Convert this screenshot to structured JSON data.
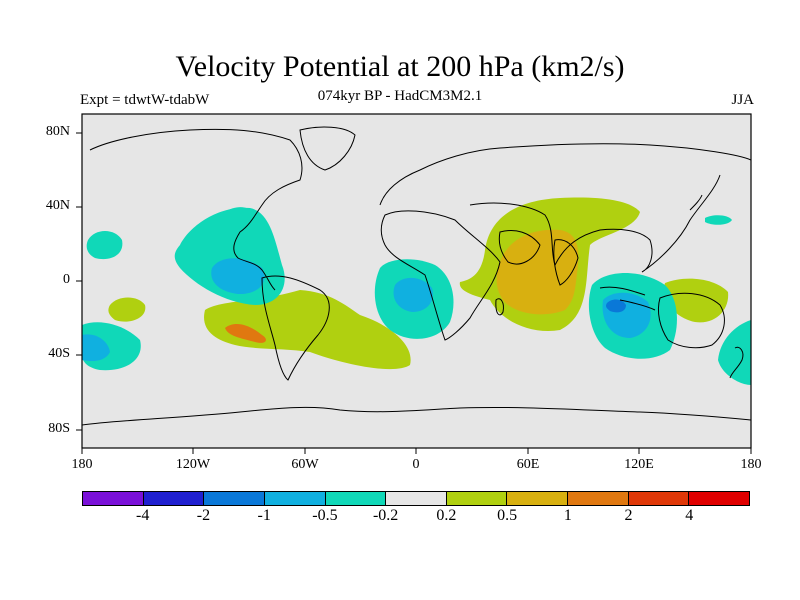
{
  "header": {
    "title": "Velocity Potential at 200 hPa (km2/s)",
    "subtitle": "074kyr BP - HadCM3M2.1",
    "expt": "Expt = tdwtW-tdabW",
    "season": "JJA"
  },
  "map": {
    "lat_labels": [
      "80N",
      "40N",
      "0",
      "40S",
      "80S"
    ],
    "lon_labels": [
      "180",
      "120W",
      "60W",
      "0",
      "60E",
      "120E",
      "180"
    ],
    "ocean_color": "#e6e6e6"
  },
  "colorbar": {
    "colors": [
      "#7a10d8",
      "#2020d0",
      "#0a78d8",
      "#10b0e0",
      "#10d8b8",
      "#e6e6e6",
      "#b0d010",
      "#d8b010",
      "#e07810",
      "#e03808",
      "#e00000"
    ],
    "labels": [
      "-4",
      "-2",
      "-1",
      "-0.5",
      "-0.2",
      "0.2",
      "0.5",
      "1",
      "2",
      "4"
    ]
  }
}
